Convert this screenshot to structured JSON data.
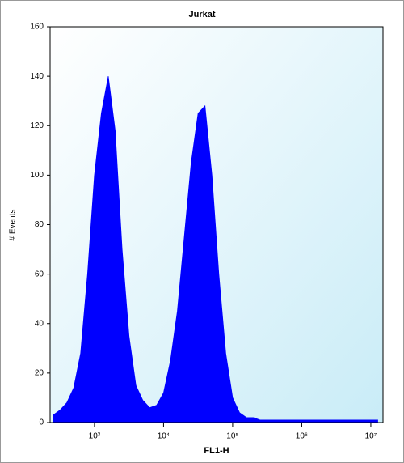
{
  "chart_data": {
    "type": "area",
    "title": "Jurkat",
    "x_label": "FL1-H",
    "y_label": "# Events",
    "x_scale": "log",
    "color": "#0000ff",
    "x": [
      251,
      316,
      398,
      501,
      631,
      794,
      1000,
      1259,
      1585,
      1995,
      2512,
      3162,
      3981,
      5012,
      6310,
      7943,
      10000,
      12589,
      15849,
      19953,
      25119,
      31623,
      39811,
      50119,
      63096,
      79433,
      100000,
      125893,
      158489,
      199526,
      251189,
      316228,
      398107,
      501187,
      630957,
      794328,
      1000000,
      1258925,
      1584893,
      1995262,
      2511886,
      3162278,
      3981072,
      5011872,
      6309573,
      7943282,
      10000000,
      12589254
    ],
    "values": [
      3,
      5,
      8,
      14,
      28,
      60,
      100,
      125,
      140,
      118,
      70,
      35,
      15,
      9,
      6,
      7,
      12,
      25,
      45,
      75,
      105,
      125,
      128,
      100,
      60,
      28,
      10,
      4,
      2,
      2,
      1,
      1,
      1,
      1,
      1,
      1,
      1,
      1,
      1,
      1,
      1,
      1,
      1,
      1,
      1,
      1,
      1,
      1
    ],
    "xlim": [
      228,
      15000000
    ],
    "xticks": [
      {
        "value": 1000,
        "label": "10³"
      },
      {
        "value": 10000,
        "label": "10⁴"
      },
      {
        "value": 100000,
        "label": "10⁵"
      },
      {
        "value": 1000000,
        "label": "10⁶"
      },
      {
        "value": 10000000,
        "label": "10⁷"
      }
    ],
    "ylim": [
      0,
      160
    ],
    "yticks": [
      0,
      20,
      40,
      60,
      80,
      100,
      120,
      140,
      160
    ]
  }
}
